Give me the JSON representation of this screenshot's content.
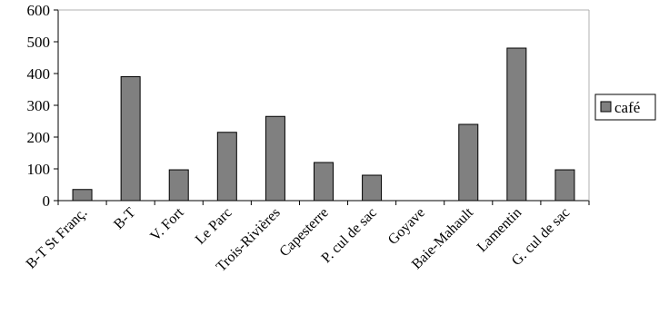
{
  "chart_data": {
    "type": "bar",
    "categories": [
      "B-T St Franç.",
      "B-T",
      "V. Fort",
      "Le Parc",
      "Trois-Rivières",
      "Capesterre",
      "P. cul de sac",
      "Goyave",
      "Baie-Mahault",
      "Lamentin",
      "G. cul de sac"
    ],
    "series": [
      {
        "name": "café",
        "values": [
          35,
          390,
          97,
          215,
          265,
          120,
          80,
          0,
          240,
          480,
          97
        ]
      }
    ],
    "ylim": [
      0,
      600
    ],
    "yticks": [
      0,
      100,
      200,
      300,
      400,
      500,
      600
    ],
    "legend_position": "right",
    "grid": false,
    "colors": {
      "bar_fill": "#808080",
      "bar_stroke": "#000000",
      "axis": "#000000"
    }
  }
}
